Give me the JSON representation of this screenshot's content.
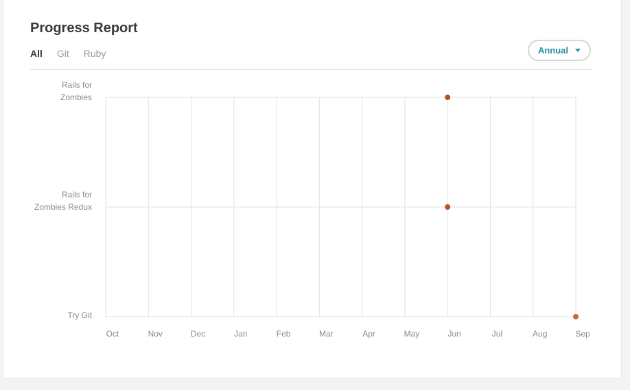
{
  "header": {
    "title": "Progress Report"
  },
  "filters": [
    {
      "label": "All",
      "active": true
    },
    {
      "label": "Git",
      "active": false
    },
    {
      "label": "Ruby",
      "active": false
    }
  ],
  "period_select": {
    "selected": "Annual",
    "icon": "caret-down-icon",
    "color": "#2a8fa0"
  },
  "chart_data": {
    "type": "scatter",
    "title": "",
    "xlabel": "",
    "ylabel": "",
    "x_categories": [
      "Oct",
      "Nov",
      "Dec",
      "Jan",
      "Feb",
      "Mar",
      "Apr",
      "May",
      "Jun",
      "Jul",
      "Aug",
      "Sep"
    ],
    "y_categories": [
      {
        "lines": [
          "Rails for",
          "Zombies"
        ]
      },
      {
        "lines": [
          "Rails for",
          "Zombies Redux"
        ]
      },
      {
        "lines": [
          "Try Git"
        ]
      }
    ],
    "grid": true,
    "legend": "none",
    "points": [
      {
        "x": "Jun",
        "y": "Rails for Zombies",
        "color": "#b5502a"
      },
      {
        "x": "Jun",
        "y": "Rails for Zombies Redux",
        "color": "#b5502a"
      },
      {
        "x": "Sep",
        "y": "Try Git",
        "color": "#d0682e"
      }
    ]
  }
}
